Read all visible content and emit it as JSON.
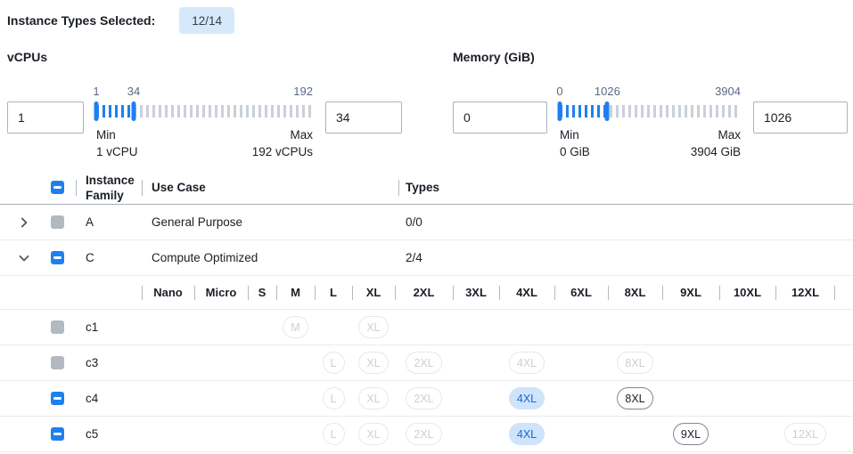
{
  "header": {
    "label": "Instance Types Selected:",
    "badge": "12/14"
  },
  "filters": [
    {
      "title": "vCPUs",
      "left_value": "1",
      "right_value": "34",
      "slider": {
        "min": 1,
        "max": 192,
        "lo": 1,
        "hi": 34,
        "lo_label": "1",
        "hi_label": "34",
        "max_label": "192",
        "min_caption": "Min",
        "min_detail": "1 vCPU",
        "max_caption": "Max",
        "max_detail": "192 vCPUs"
      }
    },
    {
      "title": "Memory (GiB)",
      "left_value": "0",
      "right_value": "1026",
      "slider": {
        "min": 0,
        "max": 3904,
        "lo": 0,
        "hi": 1026,
        "lo_label": "0",
        "hi_label": "1026",
        "max_label": "3904",
        "min_caption": "Min",
        "min_detail": "0 GiB",
        "max_caption": "Max",
        "max_detail": "3904 GiB"
      }
    }
  ],
  "table": {
    "columns": {
      "family": "Instance Family",
      "use_case": "Use Case",
      "types": "Types"
    },
    "size_columns": [
      "Nano",
      "Micro",
      "S",
      "M",
      "L",
      "XL",
      "2XL",
      "3XL",
      "4XL",
      "6XL",
      "8XL",
      "9XL",
      "10XL",
      "12XL"
    ],
    "groups": [
      {
        "family": "A",
        "use_case": "General Purpose",
        "types": "0/0",
        "checkbox": "disabled",
        "expanded": false,
        "children": []
      },
      {
        "family": "C",
        "use_case": "Compute Optimized",
        "types": "2/4",
        "checkbox": "indeterminate",
        "expanded": true,
        "children": [
          {
            "name": "c1",
            "checkbox": "disabled",
            "pills": [
              {
                "size": "M",
                "state": "disabled"
              },
              {
                "size": "XL",
                "state": "disabled"
              }
            ]
          },
          {
            "name": "c3",
            "checkbox": "disabled",
            "pills": [
              {
                "size": "L",
                "state": "disabled"
              },
              {
                "size": "XL",
                "state": "disabled"
              },
              {
                "size": "2XL",
                "state": "disabled"
              },
              {
                "size": "4XL",
                "state": "disabled"
              },
              {
                "size": "8XL",
                "state": "disabled"
              }
            ]
          },
          {
            "name": "c4",
            "checkbox": "indeterminate",
            "pills": [
              {
                "size": "L",
                "state": "disabled"
              },
              {
                "size": "XL",
                "state": "disabled"
              },
              {
                "size": "2XL",
                "state": "disabled"
              },
              {
                "size": "4XL",
                "state": "selected"
              },
              {
                "size": "8XL",
                "state": "enabled"
              }
            ]
          },
          {
            "name": "c5",
            "checkbox": "indeterminate",
            "pills": [
              {
                "size": "L",
                "state": "disabled"
              },
              {
                "size": "XL",
                "state": "disabled"
              },
              {
                "size": "2XL",
                "state": "disabled"
              },
              {
                "size": "4XL",
                "state": "selected"
              },
              {
                "size": "9XL",
                "state": "enabled"
              },
              {
                "size": "12XL",
                "state": "disabled"
              }
            ]
          }
        ]
      }
    ]
  },
  "colors": {
    "accent_blue": "#1e80f0",
    "badge_bg": "#d6e9fb",
    "badge_text": "#323d4f",
    "tick_gray": "#c9d0da",
    "selected_pill_bg": "#cfe4fb",
    "selected_pill_text": "#1667d9",
    "disabled_gray": "#b3b9c1"
  }
}
